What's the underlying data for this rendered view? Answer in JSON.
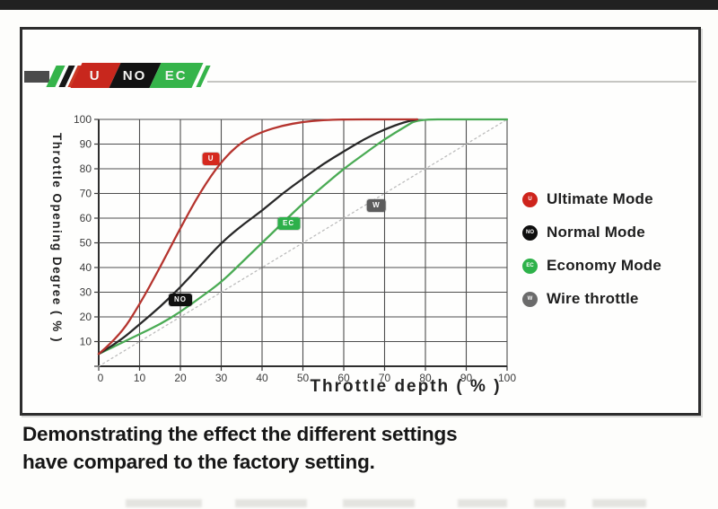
{
  "logo": {
    "segments": [
      {
        "text": "U",
        "bg": "#c8271d"
      },
      {
        "text": "NO",
        "bg": "#121212"
      },
      {
        "text": "EC",
        "bg": "#35b44a"
      }
    ]
  },
  "chart_data": {
    "type": "line",
    "title": "",
    "xlabel": "Throttle depth ( % )",
    "ylabel": "Throttle Opening Degree ( % )",
    "xlim": [
      0,
      100
    ],
    "ylim": [
      0,
      100
    ],
    "grid": true,
    "legend_position": "right",
    "x_ticks": [
      0,
      10,
      20,
      30,
      40,
      50,
      60,
      70,
      80,
      90,
      100
    ],
    "y_ticks": [
      0,
      10,
      20,
      30,
      40,
      50,
      60,
      70,
      80,
      90,
      100
    ],
    "series": [
      {
        "name": "Ultimate Mode",
        "color": "#b5342e",
        "dashed": false,
        "points": [
          [
            0,
            5
          ],
          [
            5,
            12
          ],
          [
            10,
            25
          ],
          [
            15,
            40
          ],
          [
            20,
            56
          ],
          [
            25,
            71
          ],
          [
            30,
            83
          ],
          [
            35,
            91
          ],
          [
            40,
            95
          ],
          [
            45,
            97.5
          ],
          [
            50,
            99
          ],
          [
            55,
            99.7
          ],
          [
            60,
            100
          ],
          [
            70,
            100
          ],
          [
            78,
            100
          ]
        ]
      },
      {
        "name": "Normal Mode",
        "color": "#282828",
        "dashed": false,
        "points": [
          [
            0,
            5
          ],
          [
            5,
            10
          ],
          [
            10,
            17
          ],
          [
            15,
            24
          ],
          [
            20,
            32
          ],
          [
            25,
            41
          ],
          [
            30,
            50
          ],
          [
            35,
            57
          ],
          [
            40,
            63
          ],
          [
            45,
            70
          ],
          [
            50,
            76
          ],
          [
            55,
            82
          ],
          [
            60,
            87
          ],
          [
            65,
            92
          ],
          [
            70,
            96
          ],
          [
            75,
            99
          ],
          [
            78,
            100
          ]
        ]
      },
      {
        "name": "Economy Mode",
        "color": "#4aab54",
        "dashed": false,
        "points": [
          [
            0,
            5
          ],
          [
            5,
            9
          ],
          [
            10,
            13
          ],
          [
            15,
            17
          ],
          [
            20,
            22
          ],
          [
            25,
            28
          ],
          [
            30,
            34
          ],
          [
            35,
            42
          ],
          [
            40,
            50
          ],
          [
            45,
            58
          ],
          [
            50,
            66
          ],
          [
            55,
            73
          ],
          [
            60,
            80
          ],
          [
            65,
            86
          ],
          [
            70,
            92
          ],
          [
            75,
            97
          ],
          [
            78,
            100
          ],
          [
            88,
            100
          ],
          [
            100,
            100
          ]
        ]
      },
      {
        "name": "Wire throttle",
        "color": "#bcbcbc",
        "dashed": true,
        "points": [
          [
            0,
            0
          ],
          [
            100,
            100
          ]
        ]
      }
    ],
    "annotations": [
      {
        "label": "U",
        "x": 27.5,
        "y": 84,
        "bg": "#d5281e"
      },
      {
        "label": "NO",
        "x": 20,
        "y": 27,
        "bg": "#101010"
      },
      {
        "label": "EC",
        "x": 46.5,
        "y": 58,
        "bg": "#2db04a"
      },
      {
        "label": "W",
        "x": 68,
        "y": 65,
        "bg": "#5c5c5c"
      }
    ]
  },
  "legend": {
    "items": [
      {
        "letter": "U",
        "color": "#ce241c",
        "label": "Ultimate Mode"
      },
      {
        "letter": "NO",
        "color": "#0e0e0e",
        "label": "Normal Mode"
      },
      {
        "letter": "EC",
        "color": "#2eb24a",
        "label": "Economy Mode"
      },
      {
        "letter": "W",
        "color": "#6b6b6b",
        "label": "Wire throttle"
      }
    ]
  },
  "caption": {
    "line1": "Demonstrating the effect the different settings",
    "line2": "have compared to the factory setting."
  }
}
